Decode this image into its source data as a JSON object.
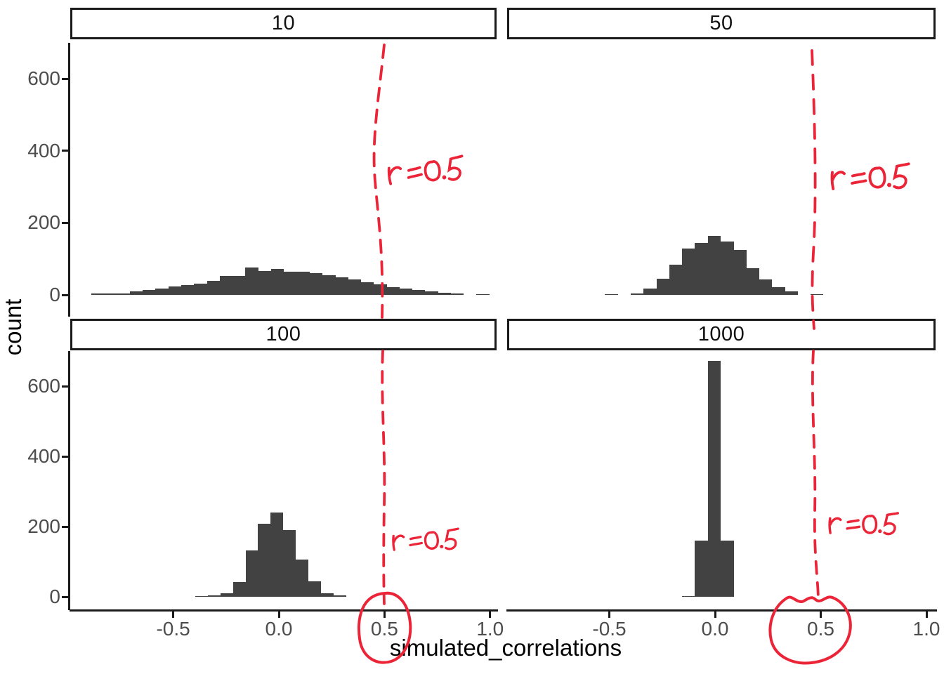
{
  "figure": {
    "background": "#ffffff",
    "x_axis_title": "simulated_correlations",
    "y_axis_title": "count"
  },
  "colors": {
    "bar_fill": "#424242",
    "axis_line": "#1a1a1a",
    "tick_label_color": "#4d4d4d",
    "strip_border": "#1a1a1a",
    "strip_background": "#ffffff",
    "annotation_red": "#ec2438"
  },
  "axes": {
    "x_tick_labels": [
      "-0.5",
      "0.0",
      "0.5",
      "1.0"
    ],
    "x_tick_values": [
      -0.5,
      0,
      0.5,
      1
    ],
    "y_tick_labels": [
      "0",
      "200",
      "400",
      "600"
    ],
    "y_tick_values": [
      0,
      200,
      400,
      600
    ]
  },
  "chart_data": {
    "type": "bar",
    "subtype": "faceted-histogram",
    "title": "",
    "xlabel": "simulated_correlations",
    "ylabel": "count",
    "xlim": [
      -0.99,
      1.04
    ],
    "ylim": [
      0,
      700
    ],
    "x_ticks": [
      -0.5,
      0.0,
      0.5,
      1.0
    ],
    "y_ticks": [
      0,
      200,
      400,
      600
    ],
    "grid": false,
    "legend": false,
    "reference_line": {
      "x": 0.5,
      "style": "hand-drawn dashed",
      "color": "#ec2438",
      "label": "r = 0.5"
    },
    "facets": [
      {
        "label": "10",
        "position": "top-left",
        "bin_start": -0.887,
        "bin_width": 0.0607,
        "counts": [
          3,
          3,
          3,
          10,
          14,
          18,
          23,
          28,
          32,
          38,
          52,
          52,
          76,
          67,
          73,
          64,
          65,
          60,
          54,
          48,
          42,
          35,
          29,
          22,
          17,
          13,
          9,
          6,
          3,
          0,
          2
        ],
        "annotation": {
          "text": "r = 0.5",
          "vline_x": 0.5,
          "circled_tick": false
        }
      },
      {
        "label": "50",
        "position": "top-right",
        "bin_start": -0.52,
        "bin_width": 0.0607,
        "counts": [
          2,
          0,
          3,
          17,
          45,
          84,
          128,
          145,
          163,
          149,
          124,
          74,
          43,
          21,
          10,
          0,
          2
        ],
        "annotation": {
          "text": "r=0.5",
          "vline_x": 0.5,
          "circled_tick": false
        }
      },
      {
        "label": "100",
        "position": "bottom-left",
        "bin_start": -0.395,
        "bin_width": 0.0593,
        "counts": [
          2,
          5,
          11,
          43,
          133,
          208,
          240,
          190,
          107,
          45,
          11,
          4
        ],
        "annotation": {
          "text": "r=0.5",
          "vline_x": 0.5,
          "circled_tick": true,
          "circled_tick_label": "0.5"
        }
      },
      {
        "label": "1000",
        "position": "bottom-right",
        "bin_start": -0.157,
        "bin_width": 0.0613,
        "counts": [
          2,
          161,
          672,
          161
        ],
        "annotation": {
          "text": "r = 0.5",
          "vline_x": 0.5,
          "circled_tick": true,
          "circled_tick_label": "0.5"
        }
      }
    ]
  }
}
